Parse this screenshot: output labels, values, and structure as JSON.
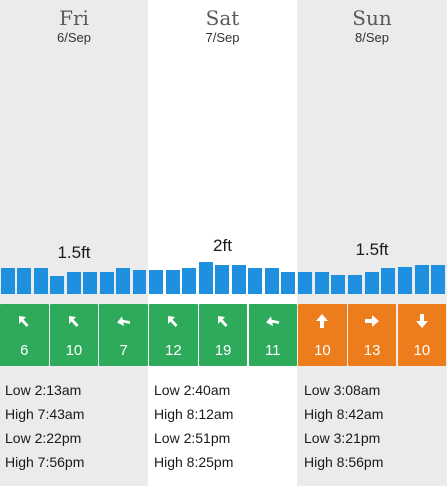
{
  "days": [
    {
      "name": "Fri",
      "date": "6/Sep",
      "wave_height": "1.5ft",
      "swell_bars": [
        0.8,
        0.8,
        0.8,
        0.55,
        0.7,
        0.7,
        0.7,
        0.8,
        0.75
      ],
      "wind": [
        {
          "speed": "6",
          "direction_icon": "arrow-up-left-icon",
          "color": "green"
        },
        {
          "speed": "10",
          "direction_icon": "arrow-up-left-icon",
          "color": "green"
        },
        {
          "speed": "7",
          "direction_icon": "arrow-left-up-icon",
          "color": "green"
        }
      ],
      "tides": [
        "Low 2:13am",
        "High 7:43am",
        "Low 2:22pm",
        "High 7:56pm"
      ]
    },
    {
      "name": "Sat",
      "date": "7/Sep",
      "wave_height": "2ft",
      "swell_bars": [
        0.75,
        0.75,
        0.8,
        1.0,
        0.9,
        0.9,
        0.8,
        0.8,
        0.7
      ],
      "wind": [
        {
          "speed": "12",
          "direction_icon": "arrow-up-left-icon",
          "color": "green"
        },
        {
          "speed": "19",
          "direction_icon": "arrow-up-left-icon",
          "color": "green"
        },
        {
          "speed": "11",
          "direction_icon": "arrow-left-up-icon",
          "color": "green"
        }
      ],
      "tides": [
        "Low 2:40am",
        "High 8:12am",
        "Low 2:51pm",
        "High 8:25pm"
      ]
    },
    {
      "name": "Sun",
      "date": "8/Sep",
      "wave_height": "1.5ft",
      "swell_bars": [
        0.7,
        0.7,
        0.6,
        0.6,
        0.7,
        0.8,
        0.85,
        0.9,
        0.9
      ],
      "wind": [
        {
          "speed": "10",
          "direction_icon": "arrow-up-icon",
          "color": "orange"
        },
        {
          "speed": "13",
          "direction_icon": "arrow-right-icon",
          "color": "orange"
        },
        {
          "speed": "10",
          "direction_icon": "arrow-down-icon",
          "color": "orange"
        }
      ],
      "tides": [
        "Low 3:08am",
        "High 8:42am",
        "Low 3:21pm",
        "High 8:56pm"
      ]
    }
  ],
  "colors": {
    "wind_green": "#2eab5a",
    "wind_orange": "#ec7c1c",
    "swell_bar": "#1e90e0"
  }
}
